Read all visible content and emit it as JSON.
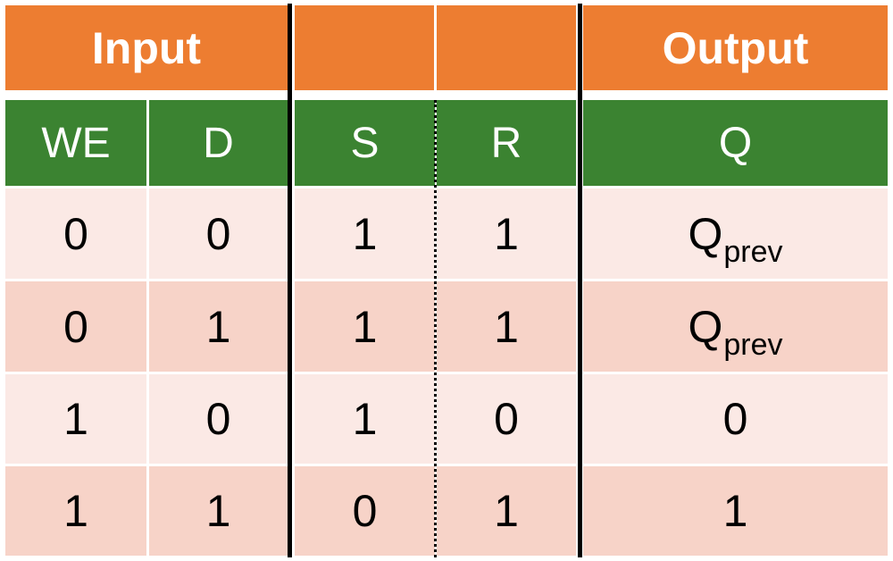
{
  "banner": {
    "input": "Input",
    "middle_left": "",
    "middle_right": "",
    "output": "Output"
  },
  "headers": [
    "WE",
    "D",
    "S",
    "R",
    "Q"
  ],
  "rows": [
    {
      "WE": "0",
      "D": "0",
      "S": "1",
      "R": "1",
      "Q": "Q",
      "Q_sub": "prev"
    },
    {
      "WE": "0",
      "D": "1",
      "S": "1",
      "R": "1",
      "Q": "Q",
      "Q_sub": "prev"
    },
    {
      "WE": "1",
      "D": "0",
      "S": "1",
      "R": "0",
      "Q": "0",
      "Q_sub": ""
    },
    {
      "WE": "1",
      "D": "1",
      "S": "0",
      "R": "1",
      "Q": "1",
      "Q_sub": ""
    }
  ],
  "colors": {
    "banner": "#ed7d31",
    "header": "#3b8331",
    "row_light": "#fbe9e5",
    "row_dark": "#f7d3c8"
  }
}
